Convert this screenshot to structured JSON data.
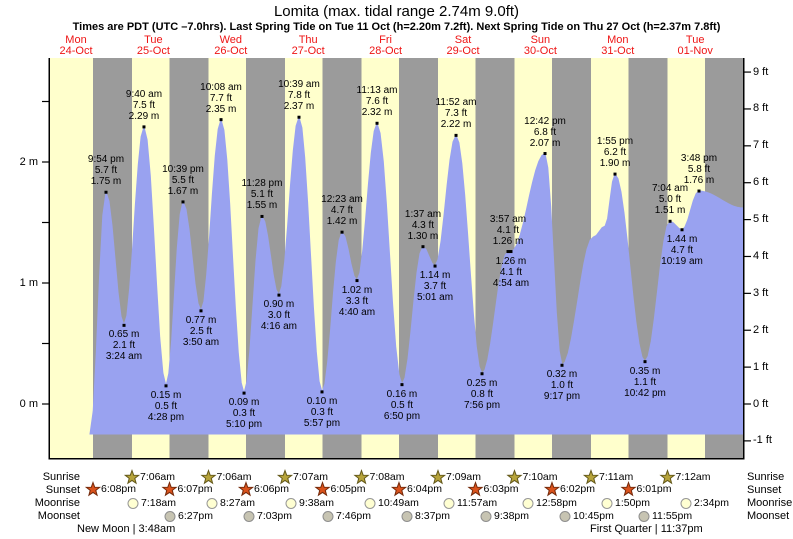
{
  "title": "Lomita (max. tidal range 2.74m 9.0ft)",
  "subtitle": "Times are PDT (UTC –7.0hrs). Last Spring Tide on Tue 11 Oct (h=2.20m 7.2ft). Next Spring Tide on Thu 27 Oct (h=2.37m 7.8ft)",
  "colors": {
    "day_band": "#ffffcc",
    "night_band": "#9b9b9b",
    "water": "#99a2f0",
    "date_red": "#ee1515",
    "axis": "#000000",
    "sunrise_star_fill": "#b7a43b",
    "sunrise_star_stroke": "#64591b",
    "sunset_star_fill": "#da521c",
    "sunset_star_stroke": "#73290a",
    "moonrise_fill": "#ffffd2",
    "moonrise_stroke": "#969696",
    "moonset_fill": "#c7c4b2",
    "moonset_stroke": "#8e8e8e"
  },
  "chart_data": {
    "type": "area",
    "title": "Lomita (max. tidal range 2.74m 9.0ft)",
    "x_axis_days": [
      {
        "dow": "Mon",
        "date": "24-Oct"
      },
      {
        "dow": "Tue",
        "date": "25-Oct"
      },
      {
        "dow": "Wed",
        "date": "26-Oct"
      },
      {
        "dow": "Thu",
        "date": "27-Oct"
      },
      {
        "dow": "Fri",
        "date": "28-Oct"
      },
      {
        "dow": "Sat",
        "date": "29-Oct"
      },
      {
        "dow": "Sun",
        "date": "30-Oct"
      },
      {
        "dow": "Mon",
        "date": "31-Oct"
      },
      {
        "dow": "Tue",
        "date": "01-Nov"
      }
    ],
    "y_axis_left": {
      "unit": "m",
      "labels": [
        "0 m",
        "1 m",
        "2 m"
      ],
      "label_values": [
        0,
        1,
        2
      ],
      "minor_ticks": [
        0.5,
        1.5,
        2.5
      ]
    },
    "y_axis_right": {
      "unit": "ft",
      "labels": [
        "-1 ft",
        "0 ft",
        "1 ft",
        "2 ft",
        "3 ft",
        "4 ft",
        "5 ft",
        "6 ft",
        "7 ft",
        "8 ft",
        "9 ft"
      ],
      "label_values": [
        -1,
        0,
        1,
        2,
        3,
        4,
        5,
        6,
        7,
        8,
        9
      ]
    },
    "tide_events": [
      {
        "type": "H",
        "time": "9:54 pm",
        "ft": "5.7",
        "m": "1.75",
        "pos": 0.0808
      },
      {
        "type": "L",
        "time": "3:24 am",
        "ft": "2.1",
        "m": "0.65",
        "pos": 0.1068
      },
      {
        "type": "H",
        "time": "9:40 am",
        "ft": "7.5",
        "m": "2.29",
        "pos": 0.1356
      },
      {
        "type": "L",
        "time": "4:28 pm",
        "ft": "0.5",
        "m": "0.15",
        "pos": 0.1674
      },
      {
        "type": "H",
        "time": "10:39 pm",
        "ft": "5.5",
        "m": "1.67",
        "pos": 0.1919
      },
      {
        "type": "L",
        "time": "3:50 am",
        "ft": "2.5",
        "m": "0.77",
        "pos": 0.2179
      },
      {
        "type": "H",
        "time": "10:08 am",
        "ft": "7.7",
        "m": "2.35",
        "pos": 0.2468
      },
      {
        "type": "L",
        "time": "5:10 pm",
        "ft": "0.3",
        "m": "0.09",
        "pos": 0.28
      },
      {
        "type": "H",
        "time": "11:28 pm",
        "ft": "5.1",
        "m": "1.55",
        "pos": 0.3059
      },
      {
        "type": "L",
        "time": "4:16 am",
        "ft": "3.0",
        "m": "0.90",
        "pos": 0.3304
      },
      {
        "type": "H",
        "time": "10:39 am",
        "ft": "7.8",
        "m": "2.37",
        "pos": 0.3593
      },
      {
        "type": "L",
        "time": "5:57 pm",
        "ft": "0.3",
        "m": "0.10",
        "pos": 0.3925
      },
      {
        "type": "H",
        "time": "12:23 am",
        "ft": "4.7",
        "m": "1.42",
        "pos": 0.4214
      },
      {
        "type": "L",
        "time": "4:40 am",
        "ft": "3.3",
        "m": "1.02",
        "pos": 0.443
      },
      {
        "type": "H",
        "time": "11:13 am",
        "ft": "7.6",
        "m": "2.32",
        "pos": 0.4719
      },
      {
        "type": "L",
        "time": "6:50 pm",
        "ft": "0.5",
        "m": "0.16",
        "pos": 0.5079
      },
      {
        "type": "H",
        "time": "1:37 am",
        "ft": "4.3",
        "m": "1.30",
        "pos": 0.5382
      },
      {
        "type": "L",
        "time": "5:01 am",
        "ft": "3.7",
        "m": "1.14",
        "pos": 0.5556
      },
      {
        "type": "H",
        "time": "11:52 am",
        "ft": "7.3",
        "m": "2.22",
        "pos": 0.5859
      },
      {
        "type": "L",
        "time": "7:56 pm",
        "ft": "0.8",
        "m": "0.25",
        "pos": 0.6234
      },
      {
        "type": "H",
        "time": "3:57 am",
        "ft": "4.1",
        "m": "1.26",
        "pos": 0.6609
      },
      {
        "type": "L",
        "time": "4:54 am",
        "ft": "4.1",
        "m": "1.26",
        "pos": 0.6652
      },
      {
        "type": "H",
        "time": "12:42 pm",
        "ft": "6.8",
        "m": "2.07",
        "pos": 0.7143
      },
      {
        "type": "L",
        "time": "9:17 pm",
        "ft": "1.0",
        "m": "0.32",
        "pos": 0.7388
      },
      {
        "type": "H",
        "time": "1:55 pm",
        "ft": "6.2",
        "m": "1.90",
        "pos": 0.8153
      },
      {
        "type": "L",
        "time": "10:42 pm",
        "ft": "1.1",
        "m": "0.35",
        "pos": 0.8586
      },
      {
        "type": "H",
        "time": "7:04 am",
        "ft": "5.0",
        "m": "1.51",
        "pos": 0.8947
      },
      {
        "type": "L",
        "time": "10:19 am",
        "ft": "4.7",
        "m": "1.44",
        "pos": 0.912
      },
      {
        "type": "H",
        "time": "3:48 pm",
        "ft": "5.8",
        "m": "1.76",
        "pos": 0.9365
      }
    ],
    "curve_helpers": {
      "start": {
        "pos": 0.0577,
        "m": -0.25
      },
      "end": {
        "pos": 1.0,
        "m": 1.62
      },
      "extra": [
        {
          "pos": 0.784,
          "m": 1.38
        },
        {
          "pos": 0.801,
          "m": 1.47
        }
      ]
    }
  },
  "almanac": {
    "row_labels": [
      "Sunrise",
      "Sunset",
      "Moonrise",
      "Moonset"
    ],
    "sunrise": [
      "7:06am",
      "7:06am",
      "7:07am",
      "7:08am",
      "7:09am",
      "7:10am",
      "7:11am",
      "7:12am"
    ],
    "sunset": [
      "6:08pm",
      "6:07pm",
      "6:06pm",
      "6:05pm",
      "6:04pm",
      "6:03pm",
      "6:02pm",
      "6:01pm"
    ],
    "moonrise": [
      "7:18am",
      "8:27am",
      "9:38am",
      "10:49am",
      "11:57am",
      "12:58pm",
      "1:50pm",
      "2:34pm"
    ],
    "moonset": [
      "6:27pm",
      "7:03pm",
      "7:46pm",
      "8:37pm",
      "9:38pm",
      "10:45pm",
      "11:55pm"
    ],
    "phases": [
      {
        "text": "New Moon | 3:48am"
      },
      {
        "text": "First Quarter | 11:37pm"
      }
    ]
  }
}
